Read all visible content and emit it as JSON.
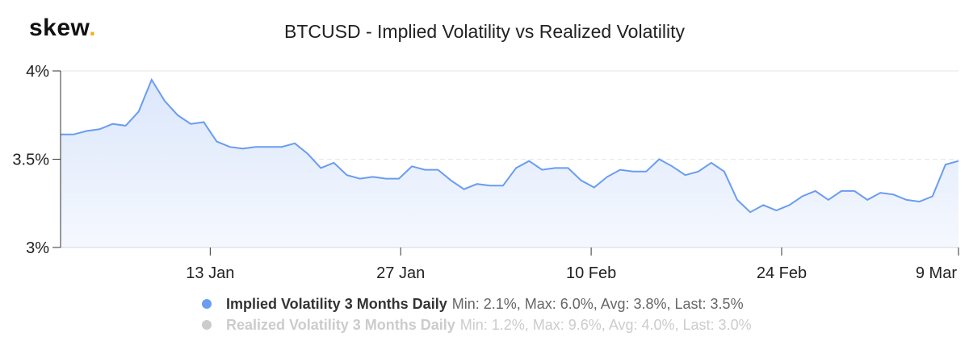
{
  "logo": {
    "text": "skew",
    "dot": "."
  },
  "colors": {
    "implied": "#6a9cf0",
    "implied_fill_top": "#dbe7fb",
    "implied_fill_bottom": "#f5f8fe",
    "realized": "#cccccc",
    "grid": "#e6e6e6",
    "axis": "#ccd6eb"
  },
  "chart_data": {
    "type": "area",
    "title": "BTCUSD - Implied Volatility vs Realized Volatility",
    "ylim": [
      3,
      4
    ],
    "y_ticks": [
      {
        "value": 4,
        "label": "4%"
      },
      {
        "value": 3.5,
        "label": "3.5%"
      },
      {
        "value": 3,
        "label": "3%"
      }
    ],
    "x_range": [
      0,
      66
    ],
    "x_ticks": [
      {
        "x": 11,
        "label": "13 Jan"
      },
      {
        "x": 25,
        "label": "27 Jan"
      },
      {
        "x": 39,
        "label": "10 Feb"
      },
      {
        "x": 53,
        "label": "24 Feb"
      },
      {
        "x": 66,
        "label": "9 Mar"
      }
    ],
    "grid": true,
    "legend_position": "bottom-center",
    "series": [
      {
        "name": "Implied Volatility 3 Months Daily",
        "stats": "Min: 2.1%, Max: 6.0%, Avg: 3.8%, Last: 3.5%",
        "visible": true,
        "values": [
          3.64,
          3.64,
          3.66,
          3.67,
          3.7,
          3.69,
          3.77,
          3.95,
          3.83,
          3.75,
          3.7,
          3.71,
          3.6,
          3.57,
          3.56,
          3.57,
          3.57,
          3.57,
          3.59,
          3.53,
          3.45,
          3.48,
          3.41,
          3.39,
          3.4,
          3.39,
          3.39,
          3.46,
          3.44,
          3.44,
          3.38,
          3.33,
          3.36,
          3.35,
          3.35,
          3.45,
          3.49,
          3.44,
          3.45,
          3.45,
          3.38,
          3.34,
          3.4,
          3.44,
          3.43,
          3.43,
          3.5,
          3.46,
          3.41,
          3.43,
          3.48,
          3.43,
          3.27,
          3.2,
          3.24,
          3.21,
          3.24,
          3.29,
          3.32,
          3.27,
          3.32,
          3.32,
          3.27,
          3.31,
          3.3,
          3.27,
          3.26,
          3.29,
          3.47,
          3.49
        ]
      },
      {
        "name": "Realized Volatility 3 Months Daily",
        "stats": "Min: 1.2%, Max: 9.6%, Avg: 4.0%, Last: 3.0%",
        "visible": false,
        "values": []
      }
    ]
  }
}
